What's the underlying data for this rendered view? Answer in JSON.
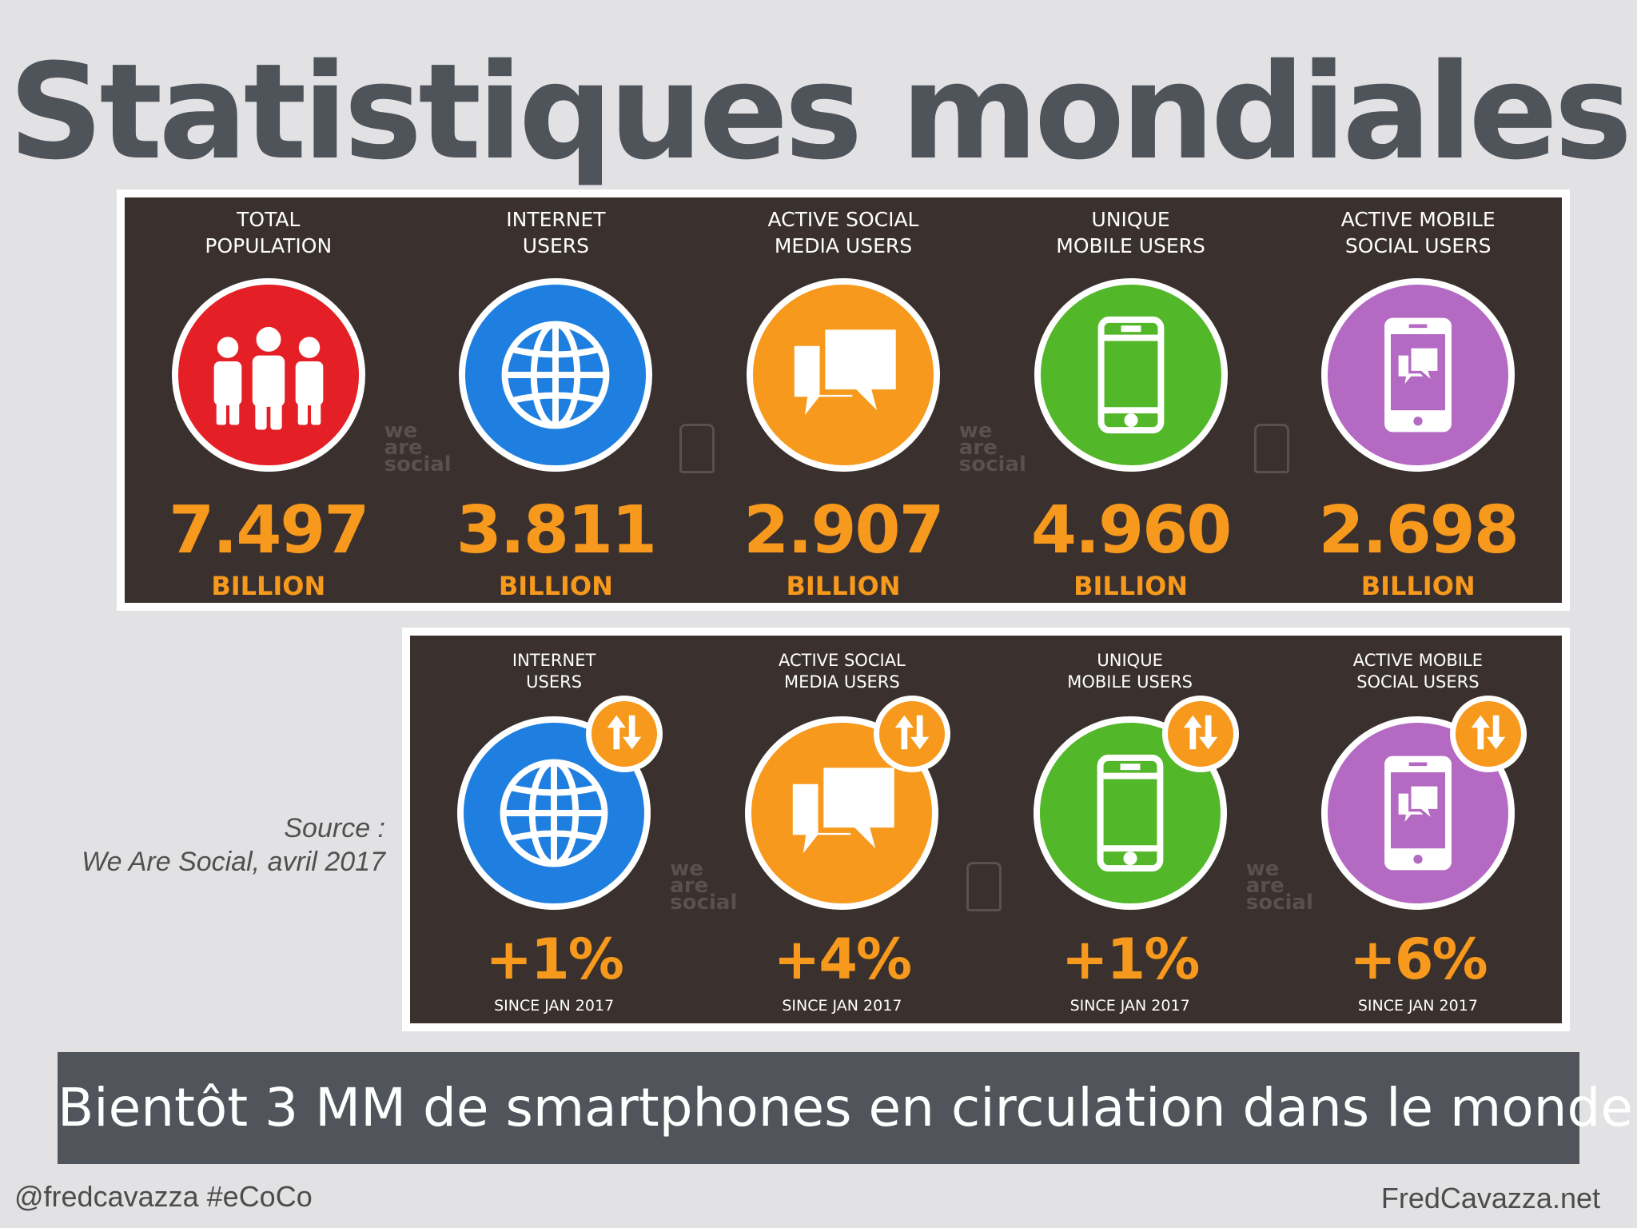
{
  "title": "Statistiques mondiales",
  "top_panel": {
    "stats": [
      {
        "label_line1": "TOTAL",
        "label_line2": "POPULATION",
        "value": "7.497",
        "unit": "BILLION",
        "color": "#e41f25",
        "icon": "people-icon"
      },
      {
        "label_line1": "INTERNET",
        "label_line2": "USERS",
        "value": "3.811",
        "unit": "BILLION",
        "color": "#1f7fe0",
        "icon": "globe-icon"
      },
      {
        "label_line1": "ACTIVE SOCIAL",
        "label_line2": "MEDIA USERS",
        "value": "2.907",
        "unit": "BILLION",
        "color": "#f7991c",
        "icon": "chat-bubbles-icon"
      },
      {
        "label_line1": "UNIQUE",
        "label_line2": "MOBILE USERS",
        "value": "4.960",
        "unit": "BILLION",
        "color": "#53b72a",
        "icon": "mobile-phone-icon"
      },
      {
        "label_line1": "ACTIVE MOBILE",
        "label_line2": "SOCIAL USERS",
        "value": "2.698",
        "unit": "BILLION",
        "color": "#b46ac3",
        "icon": "mobile-chat-icon"
      }
    ],
    "watermark_text": "we are social"
  },
  "bottom_panel": {
    "stats": [
      {
        "label_line1": "INTERNET",
        "label_line2": "USERS",
        "value": "+1%",
        "unit": "SINCE JAN 2017",
        "color": "#1f7fe0",
        "icon": "globe-icon"
      },
      {
        "label_line1": "ACTIVE SOCIAL",
        "label_line2": "MEDIA USERS",
        "value": "+4%",
        "unit": "SINCE JAN 2017",
        "color": "#f7991c",
        "icon": "chat-bubbles-icon"
      },
      {
        "label_line1": "UNIQUE",
        "label_line2": "MOBILE USERS",
        "value": "+1%",
        "unit": "SINCE JAN 2017",
        "color": "#53b72a",
        "icon": "mobile-phone-icon"
      },
      {
        "label_line1": "ACTIVE MOBILE",
        "label_line2": "SOCIAL USERS",
        "value": "+6%",
        "unit": "SINCE JAN 2017",
        "color": "#b46ac3",
        "icon": "mobile-chat-icon"
      }
    ],
    "badge_icon": "up-down-arrows-icon"
  },
  "source_line1": "Source :",
  "source_line2": "We Are Social, avril 2017",
  "banner": "Bientôt 3 MM de smartphones en circulation dans le monde",
  "footer_left": "@fredcavazza #eCoCo",
  "footer_right": "FredCavazza.net",
  "colors": {
    "accent_orange": "#f7991c",
    "panel_bg": "#3a302d",
    "banner_bg": "#51555b",
    "title": "#4f535a"
  }
}
